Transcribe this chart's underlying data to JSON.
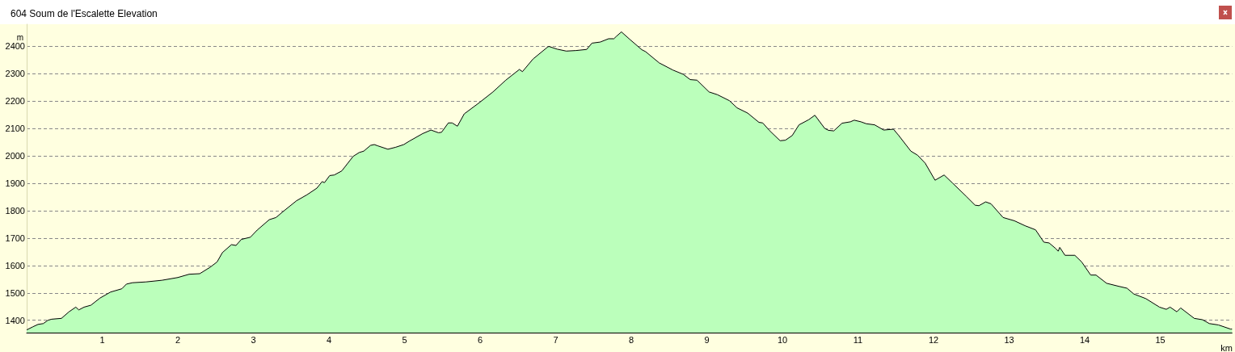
{
  "chart_data": {
    "type": "area",
    "title": "604 Soum de l'Escalette Elevation",
    "xlabel": "km",
    "ylabel": "m",
    "x": [
      0,
      0.08,
      0.15,
      0.22,
      0.28,
      0.33,
      0.46,
      0.56,
      0.65,
      0.69,
      0.76,
      0.85,
      0.97,
      1.11,
      1.26,
      1.32,
      1.4,
      1.58,
      1.79,
      2,
      2.15,
      2.29,
      2.43,
      2.52,
      2.59,
      2.71,
      2.77,
      2.84,
      2.96,
      3.05,
      3.21,
      3.3,
      3.39,
      3.57,
      3.71,
      3.84,
      3.91,
      3.94,
      4.01,
      4.07,
      4.17,
      4.32,
      4.4,
      4.46,
      4.55,
      4.6,
      4.65,
      4.78,
      4.88,
      4.99,
      5.06,
      5.24,
      5.35,
      5.45,
      5.49,
      5.58,
      5.63,
      5.7,
      5.79,
      5.99,
      6.17,
      6.34,
      6.52,
      6.56,
      6.7,
      6.89,
      6.91,
      7.02,
      7.14,
      7.27,
      7.41,
      7.48,
      7.59,
      7.7,
      7.77,
      7.8,
      7.87,
      7.98,
      8.14,
      8.19,
      8.37,
      8.55,
      8.69,
      8.78,
      8.87,
      9.03,
      9.14,
      9.3,
      9.4,
      9.54,
      9.69,
      9.74,
      9.83,
      9.97,
      10.04,
      10.13,
      10.22,
      10.35,
      10.43,
      10.56,
      10.61,
      10.68,
      10.79,
      10.9,
      10.95,
      11.04,
      11.11,
      11.22,
      11.34,
      11.47,
      11.54,
      11.7,
      11.79,
      11.89,
      12.02,
      12.14,
      12.25,
      12.43,
      12.55,
      12.6,
      12.69,
      12.76,
      12.92,
      13.07,
      13.21,
      13.35,
      13.46,
      13.53,
      13.62,
      13.65,
      13.67,
      13.74,
      13.87,
      13.96,
      14.08,
      14.15,
      14.29,
      14.45,
      14.56,
      14.65,
      14.81,
      14.99,
      15.08,
      15.13,
      15.22,
      15.27,
      15.45,
      15.56,
      15.65,
      15.77,
      15.93,
      15.95
    ],
    "values": [
      1365,
      1376,
      1385,
      1388,
      1400,
      1404,
      1407,
      1431,
      1448,
      1438,
      1448,
      1455,
      1481,
      1503,
      1515,
      1532,
      1537,
      1540,
      1546,
      1556,
      1568,
      1570,
      1594,
      1613,
      1647,
      1676,
      1673,
      1695,
      1703,
      1729,
      1767,
      1775,
      1796,
      1836,
      1858,
      1882,
      1906,
      1902,
      1928,
      1930,
      1945,
      1998,
      2012,
      2017,
      2038,
      2041,
      2036,
      2024,
      2031,
      2041,
      2053,
      2081,
      2094,
      2084,
      2086,
      2120,
      2120,
      2108,
      2153,
      2194,
      2233,
      2276,
      2315,
      2307,
      2353,
      2396,
      2399,
      2389,
      2382,
      2384,
      2388,
      2411,
      2415,
      2427,
      2427,
      2435,
      2452,
      2425,
      2387,
      2380,
      2339,
      2313,
      2297,
      2278,
      2276,
      2233,
      2223,
      2201,
      2175,
      2156,
      2122,
      2120,
      2092,
      2055,
      2057,
      2074,
      2113,
      2132,
      2148,
      2100,
      2093,
      2091,
      2119,
      2124,
      2130,
      2124,
      2117,
      2113,
      2094,
      2097,
      2074,
      2017,
      2002,
      1973,
      1911,
      1930,
      1901,
      1853,
      1820,
      1818,
      1832,
      1825,
      1775,
      1763,
      1745,
      1730,
      1685,
      1682,
      1661,
      1652,
      1666,
      1637,
      1637,
      1613,
      1565,
      1565,
      1535,
      1524,
      1517,
      1496,
      1479,
      1448,
      1440,
      1448,
      1431,
      1445,
      1407,
      1402,
      1388,
      1383,
      1368,
      1368
    ],
    "color": "#bbffbb",
    "marker": "none",
    "xlim": [
      0,
      15.95
    ],
    "ylim": [
      1355,
      2480
    ],
    "xticks": [
      1,
      2,
      3,
      4,
      5,
      6,
      7,
      8,
      9,
      10,
      11,
      12,
      13,
      14,
      15
    ],
    "yticks": [
      1400,
      1500,
      1600,
      1700,
      1800,
      1900,
      2000,
      2100,
      2200,
      2300,
      2400
    ],
    "grid": "y"
  }
}
